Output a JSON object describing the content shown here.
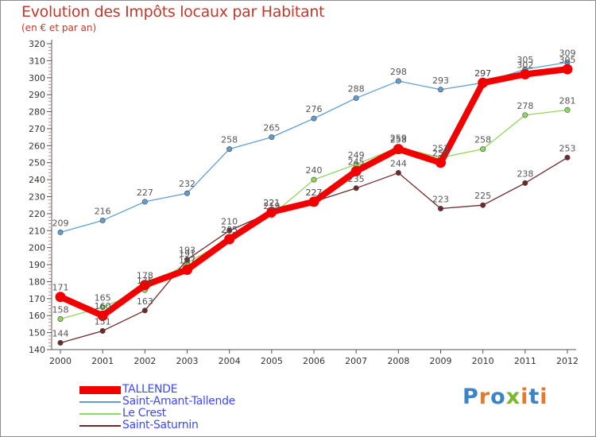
{
  "title": "Evolution des Impôts locaux par Habitant",
  "subtitle": "(en € et par an)",
  "brand": {
    "text": "Proxiti",
    "letter_colors": [
      "#3b84c6",
      "#e8792a",
      "#3b84c6",
      "#7ab72c",
      "#e8792a",
      "#3b84c6",
      "#e8792a"
    ]
  },
  "chart_data": {
    "type": "line",
    "title": "Evolution des Impôts locaux par Habitant",
    "subtitle": "(en € et par an)",
    "xlabel": "",
    "ylabel": "",
    "ylim": [
      140,
      320
    ],
    "y_ticks": [
      140,
      150,
      160,
      170,
      180,
      190,
      200,
      210,
      220,
      230,
      240,
      250,
      260,
      270,
      280,
      290,
      300,
      310,
      320
    ],
    "x": [
      "2000",
      "2001",
      "2002",
      "2003",
      "2004",
      "2005",
      "2006",
      "2007",
      "2008",
      "2009",
      "2010",
      "2011",
      "2012"
    ],
    "grid": false,
    "legend": "bottom-left",
    "series": [
      {
        "name": "Saint-Amant-Tallende",
        "color": "#5f9ed4",
        "values": [
          209,
          216,
          227,
          232,
          258,
          265,
          276,
          288,
          298,
          293,
          297,
          305,
          309
        ]
      },
      {
        "name": "Le Crest",
        "color": "#91d75e",
        "values": [
          158,
          165,
          175,
          191,
          205,
          219,
          240,
          249,
          259,
          253,
          258,
          278,
          281
        ]
      },
      {
        "name": "Saint-Saturnin",
        "color": "#6e2a2a",
        "values": [
          144,
          151,
          163,
          193,
          210,
          221,
          227,
          235,
          244,
          223,
          225,
          238,
          253
        ]
      },
      {
        "name": "TALLENDE",
        "color": "#f20000",
        "values": [
          171,
          160,
          178,
          187,
          205,
          221,
          227,
          245,
          258,
          250,
          297,
          302,
          305
        ]
      }
    ]
  }
}
